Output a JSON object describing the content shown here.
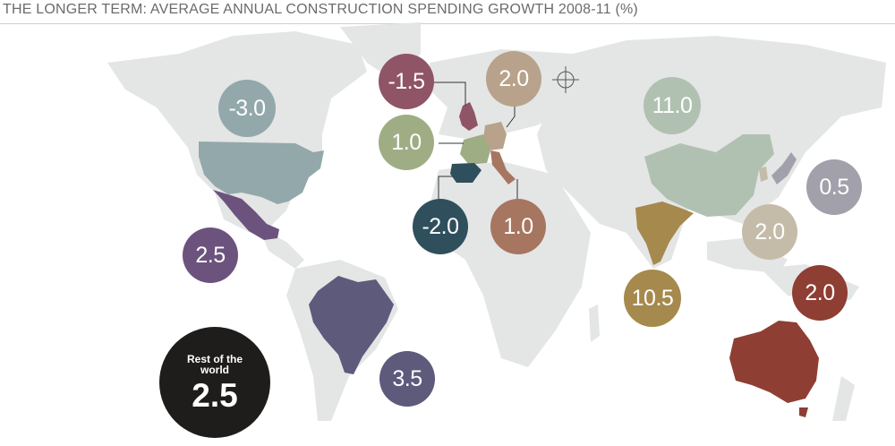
{
  "title": "THE LONGER TERM: AVERAGE ANNUAL CONSTRUCTION SPENDING GROWTH 2008-11 (%)",
  "regions": [
    {
      "name": "US",
      "value": "-3.0",
      "color": "#93a8ab"
    },
    {
      "name": "Mexico",
      "value": "2.5",
      "color": "#6c537d"
    },
    {
      "name": "Brazil",
      "value": "3.5",
      "color": "#5d5a7c"
    },
    {
      "name": "UK",
      "value": "-1.5",
      "color": "#905467"
    },
    {
      "name": "Germany",
      "value": "2.0",
      "color": "#b8a28b"
    },
    {
      "name": "France",
      "value": "1.0",
      "color": "#9fad85"
    },
    {
      "name": "Spain",
      "value": "-2.0",
      "color": "#2f4f5d"
    },
    {
      "name": "Italy",
      "value": "1.0",
      "color": "#a77660"
    },
    {
      "name": "China",
      "value": "11.0",
      "color": "#b0c1b1"
    },
    {
      "name": "India",
      "value": "10.5",
      "color": "#a6894d"
    },
    {
      "name": "Japan",
      "value": "0.5",
      "color": "#a2a0aa"
    },
    {
      "name": "South Korea",
      "value": "2.0",
      "color": "#c5bba9"
    },
    {
      "name": "Australia",
      "value": "2.0",
      "color": "#8e3e33"
    }
  ],
  "rest_of_world": {
    "label": "Rest of the world",
    "value": "2.5",
    "color": "#1f1c1c"
  },
  "land_color": "#e4e5e5"
}
